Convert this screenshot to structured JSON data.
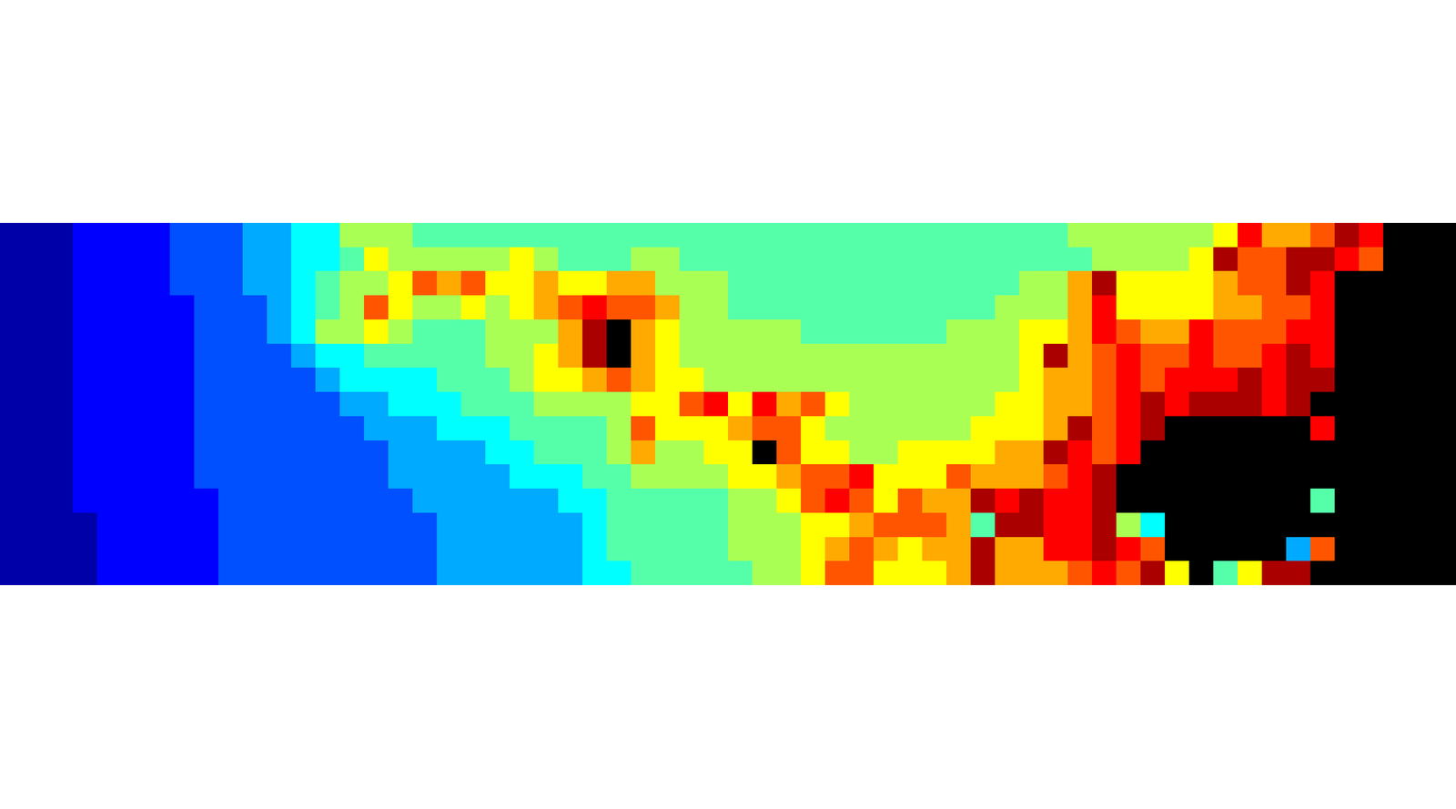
{
  "chart_data": {
    "type": "heatmap",
    "tick_labels": false,
    "zlim": [
      0,
      12
    ],
    "cells": [
      [
        0,
        0,
        0,
        1,
        1,
        1,
        1,
        2,
        2,
        2,
        3,
        3,
        4,
        4,
        6,
        6,
        6,
        5,
        5,
        5,
        5,
        5,
        5,
        5,
        5,
        5,
        5,
        5,
        5,
        5,
        5,
        5,
        5,
        5,
        5,
        5,
        5,
        5,
        5,
        5,
        5,
        5,
        5,
        5,
        6,
        6,
        6,
        6,
        6,
        6,
        7,
        10,
        8,
        8,
        9,
        11,
        10,
        12,
        12,
        12
      ],
      [
        0,
        0,
        0,
        1,
        1,
        1,
        1,
        2,
        2,
        2,
        3,
        3,
        4,
        4,
        5,
        7,
        6,
        6,
        6,
        6,
        6,
        7,
        6,
        5,
        5,
        5,
        6,
        6,
        5,
        5,
        5,
        5,
        5,
        5,
        5,
        5,
        5,
        5,
        5,
        5,
        5,
        5,
        5,
        5,
        5,
        6,
        6,
        6,
        6,
        7,
        11,
        9,
        9,
        11,
        11,
        10,
        9,
        12,
        12,
        12
      ],
      [
        0,
        0,
        0,
        1,
        1,
        1,
        1,
        2,
        2,
        2,
        3,
        3,
        4,
        5,
        6,
        6,
        7,
        9,
        8,
        9,
        7,
        7,
        8,
        7,
        7,
        8,
        8,
        6,
        6,
        6,
        5,
        5,
        5,
        5,
        5,
        5,
        5,
        5,
        5,
        5,
        5,
        5,
        6,
        6,
        8,
        11,
        7,
        7,
        7,
        7,
        8,
        9,
        9,
        11,
        10,
        12,
        12,
        12,
        12,
        12
      ],
      [
        0,
        0,
        0,
        1,
        1,
        1,
        1,
        1,
        2,
        2,
        2,
        3,
        4,
        5,
        6,
        9,
        7,
        6,
        6,
        7,
        6,
        7,
        8,
        9,
        10,
        9,
        9,
        8,
        6,
        6,
        5,
        5,
        5,
        5,
        5,
        5,
        5,
        5,
        5,
        5,
        5,
        6,
        6,
        6,
        8,
        10,
        7,
        7,
        7,
        7,
        8,
        8,
        9,
        9,
        10,
        12,
        12,
        12,
        12,
        12
      ],
      [
        0,
        0,
        0,
        1,
        1,
        1,
        1,
        1,
        2,
        2,
        2,
        3,
        4,
        6,
        6,
        7,
        6,
        5,
        5,
        5,
        6,
        6,
        6,
        8,
        11,
        12,
        8,
        7,
        6,
        6,
        6,
        6,
        6,
        5,
        5,
        5,
        5,
        5,
        5,
        6,
        6,
        6,
        7,
        7,
        8,
        10,
        9,
        8,
        8,
        10,
        9,
        9,
        9,
        10,
        10,
        12,
        12,
        12,
        12,
        12
      ],
      [
        0,
        0,
        0,
        1,
        1,
        1,
        1,
        1,
        2,
        2,
        2,
        2,
        3,
        4,
        4,
        5,
        5,
        5,
        5,
        5,
        6,
        6,
        7,
        8,
        11,
        12,
        8,
        7,
        6,
        6,
        6,
        6,
        6,
        6,
        6,
        6,
        6,
        6,
        6,
        6,
        6,
        6,
        7,
        11,
        8,
        9,
        10,
        9,
        9,
        10,
        9,
        9,
        10,
        11,
        10,
        12,
        12,
        12,
        12,
        12
      ],
      [
        0,
        0,
        0,
        1,
        1,
        1,
        1,
        1,
        2,
        2,
        2,
        2,
        2,
        3,
        4,
        4,
        4,
        4,
        5,
        5,
        5,
        6,
        7,
        7,
        8,
        9,
        8,
        7,
        7,
        6,
        6,
        6,
        6,
        6,
        6,
        6,
        6,
        6,
        6,
        6,
        6,
        6,
        7,
        8,
        8,
        9,
        10,
        9,
        10,
        10,
        10,
        11,
        10,
        11,
        11,
        12,
        12,
        12,
        12,
        12
      ],
      [
        0,
        0,
        0,
        1,
        1,
        1,
        1,
        1,
        2,
        2,
        2,
        2,
        2,
        2,
        3,
        3,
        4,
        4,
        4,
        5,
        5,
        5,
        6,
        6,
        6,
        6,
        7,
        7,
        9,
        10,
        7,
        10,
        8,
        9,
        7,
        6,
        6,
        6,
        6,
        6,
        6,
        7,
        7,
        8,
        8,
        9,
        10,
        11,
        10,
        11,
        11,
        11,
        10,
        11,
        12,
        12,
        12,
        12,
        12,
        12
      ],
      [
        0,
        0,
        0,
        1,
        1,
        1,
        1,
        1,
        2,
        2,
        2,
        2,
        2,
        2,
        2,
        3,
        3,
        3,
        4,
        4,
        4,
        5,
        5,
        5,
        5,
        6,
        9,
        7,
        7,
        7,
        8,
        9,
        9,
        7,
        6,
        6,
        6,
        6,
        6,
        6,
        7,
        7,
        7,
        8,
        11,
        9,
        10,
        11,
        12,
        12,
        12,
        12,
        12,
        12,
        10,
        12,
        12,
        12,
        12,
        12
      ],
      [
        0,
        0,
        0,
        1,
        1,
        1,
        1,
        1,
        2,
        2,
        2,
        2,
        2,
        2,
        2,
        2,
        3,
        3,
        3,
        3,
        4,
        4,
        5,
        5,
        5,
        6,
        8,
        6,
        6,
        7,
        7,
        12,
        9,
        7,
        7,
        6,
        6,
        7,
        7,
        7,
        7,
        8,
        8,
        11,
        10,
        9,
        10,
        12,
        12,
        12,
        12,
        12,
        12,
        12,
        12,
        12,
        12,
        12,
        12,
        12
      ],
      [
        0,
        0,
        0,
        1,
        1,
        1,
        1,
        1,
        2,
        2,
        2,
        2,
        2,
        2,
        2,
        2,
        3,
        3,
        3,
        3,
        3,
        4,
        4,
        4,
        5,
        5,
        6,
        6,
        6,
        6,
        7,
        7,
        8,
        9,
        9,
        10,
        7,
        7,
        7,
        9,
        8,
        8,
        8,
        9,
        10,
        11,
        12,
        12,
        12,
        12,
        12,
        12,
        12,
        12,
        12,
        12,
        12,
        12,
        12,
        12
      ],
      [
        0,
        0,
        0,
        1,
        1,
        1,
        1,
        1,
        1,
        2,
        2,
        2,
        2,
        2,
        2,
        2,
        2,
        3,
        3,
        3,
        3,
        3,
        3,
        4,
        4,
        5,
        5,
        5,
        5,
        5,
        6,
        6,
        7,
        9,
        10,
        9,
        7,
        9,
        8,
        8,
        11,
        10,
        11,
        10,
        10,
        11,
        12,
        12,
        12,
        12,
        12,
        12,
        12,
        12,
        5,
        12,
        12,
        12,
        12,
        12
      ],
      [
        0,
        0,
        0,
        0,
        1,
        1,
        1,
        1,
        1,
        2,
        2,
        2,
        2,
        2,
        2,
        2,
        2,
        2,
        3,
        3,
        3,
        3,
        3,
        3,
        4,
        5,
        5,
        5,
        5,
        5,
        6,
        6,
        6,
        7,
        7,
        8,
        9,
        9,
        9,
        8,
        5,
        11,
        11,
        10,
        10,
        11,
        6,
        4,
        12,
        12,
        12,
        12,
        12,
        12,
        12,
        12,
        12,
        12,
        12,
        12
      ],
      [
        0,
        0,
        0,
        0,
        1,
        1,
        1,
        1,
        1,
        2,
        2,
        2,
        2,
        2,
        2,
        2,
        2,
        2,
        3,
        3,
        3,
        3,
        3,
        3,
        4,
        5,
        5,
        5,
        5,
        5,
        6,
        6,
        6,
        7,
        8,
        9,
        8,
        7,
        8,
        8,
        11,
        8,
        8,
        10,
        10,
        11,
        10,
        9,
        12,
        12,
        12,
        12,
        12,
        3,
        9,
        12,
        12,
        12,
        12,
        12
      ],
      [
        0,
        0,
        0,
        0,
        1,
        1,
        1,
        1,
        1,
        2,
        2,
        2,
        2,
        2,
        2,
        2,
        2,
        2,
        3,
        3,
        3,
        3,
        3,
        3,
        4,
        4,
        5,
        5,
        5,
        5,
        5,
        6,
        6,
        7,
        9,
        9,
        7,
        7,
        7,
        8,
        11,
        8,
        8,
        8,
        9,
        10,
        9,
        11,
        7,
        12,
        5,
        7,
        11,
        11,
        12,
        12,
        12,
        12,
        12,
        12
      ]
    ]
  }
}
